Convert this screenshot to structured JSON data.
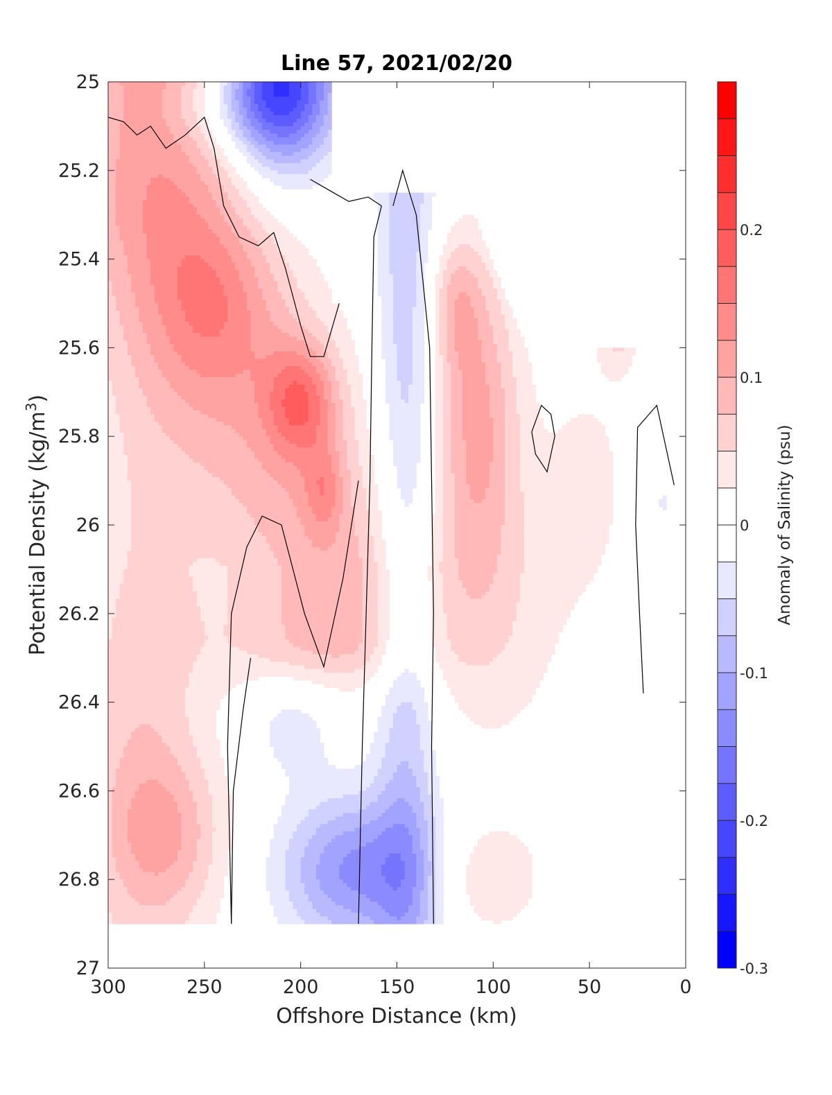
{
  "chart_data": {
    "type": "heatmap",
    "subtype": "filled-contour",
    "title": "Line 57, 2021/02/20",
    "xlabel": "Offshore Distance (km)",
    "ylabel_base": "Potential Density (kg/m",
    "ylabel_sup": "3",
    "ylabel_end": ")",
    "colorbar_label": "Anomaly of Salinity (psu)",
    "xlim": [
      300,
      0
    ],
    "x_reversed": true,
    "ylim": [
      25,
      27
    ],
    "y_reversed": true,
    "x_ticks": [
      300,
      250,
      200,
      150,
      100,
      50,
      0
    ],
    "x_tick_labels": [
      "300",
      "250",
      "200",
      "150",
      "100",
      "50",
      "0"
    ],
    "y_ticks": [
      25,
      25.2,
      25.4,
      25.6,
      25.8,
      26,
      26.2,
      26.4,
      26.6,
      26.8,
      27
    ],
    "y_tick_labels": [
      "25",
      "25.2",
      "25.4",
      "25.6",
      "25.8",
      "26",
      "26.2",
      "26.4",
      "26.6",
      "26.8",
      "27"
    ],
    "colorbar": {
      "min": -0.3,
      "max": 0.3,
      "step": 0.025,
      "ticks": [
        -0.3,
        -0.2,
        -0.1,
        0,
        0.1,
        0.2
      ],
      "tick_labels": [
        "-0.3",
        "-0.2",
        "-0.1",
        "0",
        "0.1",
        "0.2"
      ],
      "colormap": "blue-white-red",
      "negative_color": "#0000ff",
      "positive_color": "#ff0000"
    },
    "contour_zero_line": true,
    "contour_line_color": "#000000",
    "grid": false,
    "legend": "none",
    "data_extent_x": [
      0,
      300
    ],
    "data_extent_y": [
      25.0,
      26.9
    ]
  }
}
